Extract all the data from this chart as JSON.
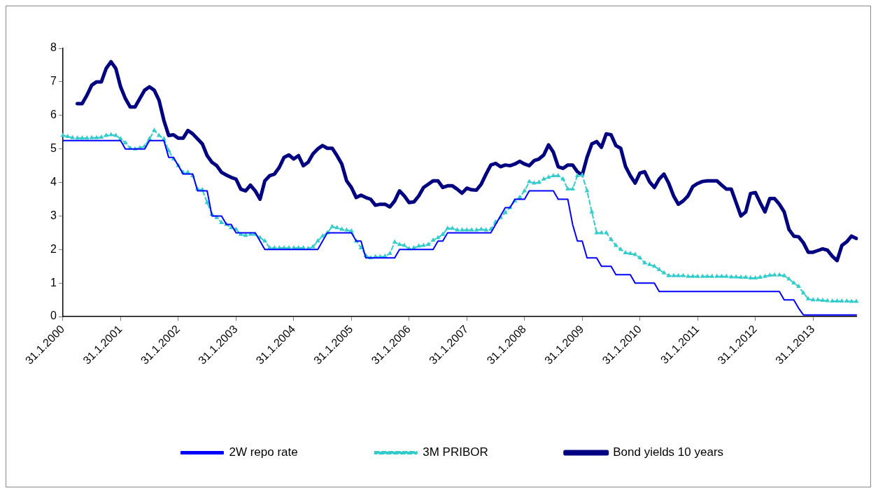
{
  "chart_data": {
    "type": "line",
    "categories": [
      "31.1.2000",
      null,
      null,
      null,
      null,
      null,
      null,
      null,
      null,
      null,
      null,
      null,
      "31.1.2001",
      null,
      null,
      null,
      null,
      null,
      null,
      null,
      null,
      null,
      null,
      null,
      "31.1.2002",
      null,
      null,
      null,
      null,
      null,
      null,
      null,
      null,
      null,
      null,
      null,
      "31.1.2003",
      null,
      null,
      null,
      null,
      null,
      null,
      null,
      null,
      null,
      null,
      null,
      "31.1.2004",
      null,
      null,
      null,
      null,
      null,
      null,
      null,
      null,
      null,
      null,
      null,
      "31.1.2005",
      null,
      null,
      null,
      null,
      null,
      null,
      null,
      null,
      null,
      null,
      null,
      "31.1.2006",
      null,
      null,
      null,
      null,
      null,
      null,
      null,
      null,
      null,
      null,
      null,
      "31.1.2007",
      null,
      null,
      null,
      null,
      null,
      null,
      null,
      null,
      null,
      null,
      null,
      "31.1.2008",
      null,
      null,
      null,
      null,
      null,
      null,
      null,
      null,
      null,
      null,
      null,
      "31.1.2009",
      null,
      null,
      null,
      null,
      null,
      null,
      null,
      null,
      null,
      null,
      null,
      "31.1.2010",
      null,
      null,
      null,
      null,
      null,
      null,
      null,
      null,
      null,
      null,
      null,
      "31.1.2011",
      null,
      null,
      null,
      null,
      null,
      null,
      null,
      null,
      null,
      null,
      null,
      "31.1.2012",
      null,
      null,
      null,
      null,
      null,
      null,
      null,
      null,
      null,
      null,
      null,
      "31.1.2013",
      null,
      null,
      null,
      null,
      null,
      null,
      null,
      null,
      null
    ],
    "series": [
      {
        "name": "2W repo rate",
        "color": "#0000ff",
        "marker": "none",
        "line_style": "solid",
        "values": [
          5.25,
          5.25,
          5.25,
          5.25,
          5.25,
          5.25,
          5.25,
          5.25,
          5.25,
          5.25,
          5.25,
          5.25,
          5.25,
          5.0,
          5.0,
          5.0,
          5.0,
          5.0,
          5.25,
          5.25,
          5.25,
          5.25,
          4.75,
          4.75,
          4.5,
          4.25,
          4.25,
          4.25,
          3.75,
          3.75,
          3.75,
          3.0,
          3.0,
          3.0,
          2.75,
          2.75,
          2.5,
          2.5,
          2.5,
          2.5,
          2.5,
          2.25,
          2.0,
          2.0,
          2.0,
          2.0,
          2.0,
          2.0,
          2.0,
          2.0,
          2.0,
          2.0,
          2.0,
          2.0,
          2.25,
          2.5,
          2.5,
          2.5,
          2.5,
          2.5,
          2.5,
          2.25,
          2.25,
          1.75,
          1.75,
          1.75,
          1.75,
          1.75,
          1.75,
          1.75,
          2.0,
          2.0,
          2.0,
          2.0,
          2.0,
          2.0,
          2.0,
          2.0,
          2.25,
          2.25,
          2.5,
          2.5,
          2.5,
          2.5,
          2.5,
          2.5,
          2.5,
          2.5,
          2.5,
          2.5,
          2.75,
          3.0,
          3.25,
          3.25,
          3.5,
          3.5,
          3.5,
          3.75,
          3.75,
          3.75,
          3.75,
          3.75,
          3.75,
          3.5,
          3.5,
          3.5,
          2.75,
          2.25,
          2.25,
          1.75,
          1.75,
          1.75,
          1.5,
          1.5,
          1.5,
          1.25,
          1.25,
          1.25,
          1.25,
          1.0,
          1.0,
          1.0,
          1.0,
          1.0,
          0.75,
          0.75,
          0.75,
          0.75,
          0.75,
          0.75,
          0.75,
          0.75,
          0.75,
          0.75,
          0.75,
          0.75,
          0.75,
          0.75,
          0.75,
          0.75,
          0.75,
          0.75,
          0.75,
          0.75,
          0.75,
          0.75,
          0.75,
          0.75,
          0.75,
          0.75,
          0.5,
          0.5,
          0.5,
          0.25,
          0.05,
          0.05,
          0.05,
          0.05,
          0.05,
          0.05,
          0.05,
          0.05,
          0.05,
          0.05,
          0.05,
          0.05
        ]
      },
      {
        "name": "3M PRIBOR",
        "color": "#33cccc",
        "marker": "triangle",
        "line_style": "dashed",
        "values": [
          5.4,
          5.37,
          5.33,
          5.32,
          5.32,
          5.32,
          5.33,
          5.33,
          5.35,
          5.4,
          5.42,
          5.4,
          5.3,
          5.18,
          5.02,
          5.0,
          5.03,
          5.08,
          5.3,
          5.55,
          5.4,
          5.3,
          4.95,
          4.7,
          4.5,
          4.3,
          4.3,
          4.2,
          3.8,
          3.78,
          3.4,
          3.05,
          2.95,
          2.8,
          2.75,
          2.65,
          2.6,
          2.45,
          2.42,
          2.45,
          2.45,
          2.35,
          2.25,
          2.05,
          2.05,
          2.05,
          2.05,
          2.05,
          2.05,
          2.05,
          2.05,
          2.03,
          2.08,
          2.25,
          2.4,
          2.5,
          2.68,
          2.65,
          2.6,
          2.58,
          2.55,
          2.25,
          2.05,
          1.82,
          1.75,
          1.78,
          1.78,
          1.8,
          1.88,
          2.22,
          2.15,
          2.12,
          2.02,
          2.05,
          2.1,
          2.12,
          2.15,
          2.28,
          2.35,
          2.45,
          2.63,
          2.63,
          2.58,
          2.58,
          2.58,
          2.58,
          2.58,
          2.6,
          2.58,
          2.6,
          2.82,
          2.95,
          3.1,
          3.25,
          3.45,
          3.55,
          3.75,
          4.02,
          3.98,
          4.0,
          4.1,
          4.15,
          4.2,
          4.2,
          4.1,
          3.8,
          3.8,
          4.2,
          4.22,
          3.75,
          3.12,
          2.5,
          2.5,
          2.5,
          2.3,
          2.12,
          2.0,
          1.9,
          1.88,
          1.85,
          1.75,
          1.6,
          1.55,
          1.5,
          1.4,
          1.3,
          1.22,
          1.22,
          1.22,
          1.22,
          1.2,
          1.2,
          1.2,
          1.2,
          1.2,
          1.2,
          1.2,
          1.2,
          1.2,
          1.18,
          1.18,
          1.17,
          1.17,
          1.15,
          1.15,
          1.17,
          1.2,
          1.23,
          1.24,
          1.24,
          1.22,
          1.12,
          1.0,
          0.9,
          0.7,
          0.53,
          0.5,
          0.5,
          0.48,
          0.47,
          0.46,
          0.46,
          0.46,
          0.46,
          0.45,
          0.45
        ]
      },
      {
        "name": "Bond yields 10 years",
        "color": "#000080",
        "marker": "none",
        "line_style": "solid",
        "values": [
          null,
          null,
          null,
          6.35,
          6.35,
          6.6,
          6.9,
          7.0,
          7.0,
          7.4,
          7.6,
          7.4,
          6.85,
          6.5,
          6.25,
          6.25,
          6.5,
          6.75,
          6.85,
          6.75,
          6.45,
          5.85,
          5.4,
          5.42,
          5.32,
          5.32,
          5.55,
          5.45,
          5.3,
          5.15,
          4.8,
          4.6,
          4.5,
          4.3,
          4.22,
          4.15,
          4.1,
          3.8,
          3.75,
          3.92,
          3.75,
          3.5,
          4.05,
          4.2,
          4.25,
          4.45,
          4.75,
          4.82,
          4.7,
          4.8,
          4.5,
          4.6,
          4.85,
          5.0,
          5.1,
          5.02,
          5.02,
          4.8,
          4.55,
          4.05,
          3.85,
          3.55,
          3.62,
          3.55,
          3.5,
          3.32,
          3.35,
          3.35,
          3.27,
          3.45,
          3.75,
          3.6,
          3.4,
          3.42,
          3.6,
          3.85,
          3.95,
          4.05,
          4.05,
          3.85,
          3.9,
          3.9,
          3.8,
          3.68,
          3.83,
          3.78,
          3.77,
          3.95,
          4.25,
          4.52,
          4.57,
          4.47,
          4.52,
          4.5,
          4.55,
          4.63,
          4.55,
          4.5,
          4.65,
          4.7,
          4.82,
          5.12,
          4.9,
          4.47,
          4.42,
          4.52,
          4.52,
          4.32,
          4.22,
          4.75,
          5.15,
          5.22,
          5.05,
          5.45,
          5.42,
          5.1,
          5.02,
          4.48,
          4.2,
          3.98,
          4.28,
          4.32,
          4.02,
          3.85,
          4.1,
          4.25,
          3.97,
          3.6,
          3.35,
          3.45,
          3.6,
          3.88,
          3.97,
          4.03,
          4.05,
          4.05,
          4.05,
          3.92,
          3.8,
          3.8,
          3.4,
          3.0,
          3.12,
          3.67,
          3.7,
          3.4,
          3.12,
          3.52,
          3.52,
          3.35,
          3.12,
          2.6,
          2.4,
          2.38,
          2.2,
          1.92,
          1.92,
          1.97,
          2.02,
          1.98,
          1.8,
          1.67,
          2.12,
          2.23,
          2.4,
          2.33
        ]
      }
    ],
    "ylim": [
      0,
      8
    ],
    "yticks": [
      0,
      1,
      2,
      3,
      4,
      5,
      6,
      7,
      8
    ],
    "grid": false,
    "legend": "bottom"
  }
}
